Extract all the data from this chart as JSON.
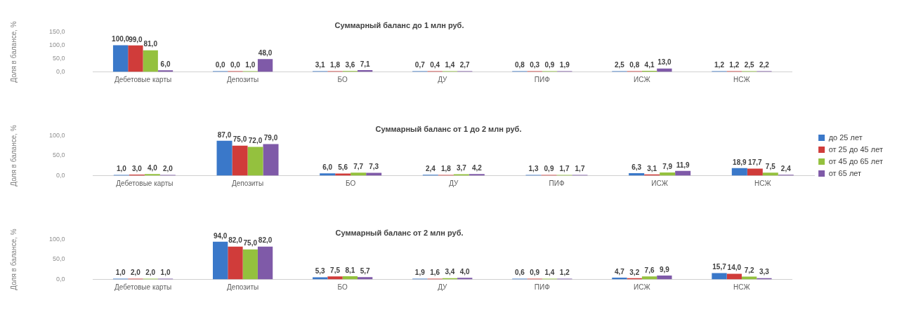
{
  "chart_data": [
    {
      "type": "bar",
      "title": "Суммарный баланс до 1 млн руб.",
      "ylabel": "Доля в балансе, %",
      "categories": [
        "Дебетовые карты",
        "Депозиты",
        "БО",
        "ДУ",
        "ПИФ",
        "ИСЖ",
        "НСЖ"
      ],
      "ylim": [
        0,
        150
      ],
      "yticks": [
        {
          "value": 0,
          "label": "0,0"
        },
        {
          "value": 50,
          "label": "50,0"
        },
        {
          "value": 100,
          "label": "100,0"
        },
        {
          "value": 150,
          "label": "150,0"
        }
      ],
      "grid": false,
      "legend": false,
      "series": [
        {
          "color": "#3a78c9",
          "values": [
            100,
            0,
            3.1,
            0.7,
            0.8,
            2.5,
            1.2
          ],
          "value_labels": [
            "100,0",
            "0,0",
            "3,1",
            "0,7",
            "0,8",
            "2,5",
            "1,2"
          ]
        },
        {
          "color": "#d03c3a",
          "values": [
            99,
            0,
            1.8,
            0.4,
            0.3,
            0.8,
            1.2
          ],
          "value_labels": [
            "99,0",
            "0,0",
            "1,8",
            "0,4",
            "0,3",
            "0,8",
            "1,2"
          ]
        },
        {
          "color": "#94c13e",
          "values": [
            81,
            1,
            3.6,
            1.4,
            0.9,
            4.1,
            2.5
          ],
          "value_labels": [
            "81,0",
            "1,0",
            "3,6",
            "1,4",
            "0,9",
            "4,1",
            "2,5"
          ]
        },
        {
          "color": "#7f5aa8",
          "values": [
            6,
            48,
            7.1,
            2.7,
            1.9,
            13,
            2.2
          ],
          "value_labels": [
            "6,0",
            "48,0",
            "7,1",
            "2,7",
            "1,9",
            "13,0",
            "2,2"
          ]
        }
      ]
    },
    {
      "type": "bar",
      "title": "Суммарный баланс от 1 до 2 млн руб.",
      "ylabel": "Доля в балансе, %",
      "categories": [
        "Дебетовые карты",
        "Депозиты",
        "БО",
        "ДУ",
        "ПИФ",
        "ИСЖ",
        "НСЖ"
      ],
      "ylim": [
        0,
        100
      ],
      "yticks": [
        {
          "value": 0,
          "label": "0,0"
        },
        {
          "value": 50,
          "label": "50,0"
        },
        {
          "value": 100,
          "label": "100,0"
        }
      ],
      "grid": false,
      "legend": "right",
      "series": [
        {
          "name": "до 25 лет",
          "color": "#3a78c9",
          "values": [
            1,
            87,
            6,
            2.4,
            1.3,
            6.3,
            18.9
          ],
          "value_labels": [
            "1,0",
            "87,0",
            "6,0",
            "2,4",
            "1,3",
            "6,3",
            "18,9"
          ]
        },
        {
          "name": "от 25 до 45 лет",
          "color": "#d03c3a",
          "values": [
            3,
            75,
            5.6,
            1.8,
            0.9,
            3.1,
            17.7
          ],
          "value_labels": [
            "3,0",
            "75,0",
            "5,6",
            "1,8",
            "0,9",
            "3,1",
            "17,7"
          ]
        },
        {
          "name": "от 45 до 65 лет",
          "color": "#94c13e",
          "values": [
            4,
            72,
            7.7,
            3.7,
            1.7,
            7.9,
            7.5
          ],
          "value_labels": [
            "4,0",
            "72,0",
            "7,7",
            "3,7",
            "1,7",
            "7,9",
            "7,5"
          ]
        },
        {
          "name": "от 65 лет",
          "color": "#7f5aa8",
          "values": [
            2,
            79,
            7.3,
            4.2,
            1.7,
            11.9,
            2.4
          ],
          "value_labels": [
            "2,0",
            "79,0",
            "7,3",
            "4,2",
            "1,7",
            "11,9",
            "2,4"
          ]
        }
      ]
    },
    {
      "type": "bar",
      "title": "Суммарный баланс от 2 млн руб.",
      "ylabel": "Доля в балансе, %",
      "categories": [
        "Дебетовые карты",
        "Депозиты",
        "БО",
        "ДУ",
        "ПИФ",
        "ИСЖ",
        "НСЖ"
      ],
      "ylim": [
        0,
        100
      ],
      "yticks": [
        {
          "value": 0,
          "label": "0,0"
        },
        {
          "value": 50,
          "label": "50,0"
        },
        {
          "value": 100,
          "label": "100,0"
        }
      ],
      "grid": false,
      "legend": false,
      "series": [
        {
          "color": "#3a78c9",
          "values": [
            1,
            94,
            5.3,
            1.9,
            0.6,
            4.7,
            15.7
          ],
          "value_labels": [
            "1,0",
            "94,0",
            "5,3",
            "1,9",
            "0,6",
            "4,7",
            "15,7"
          ]
        },
        {
          "color": "#d03c3a",
          "values": [
            2,
            82,
            7.5,
            1.6,
            0.9,
            3.2,
            14
          ],
          "value_labels": [
            "2,0",
            "82,0",
            "7,5",
            "1,6",
            "0,9",
            "3,2",
            "14,0"
          ]
        },
        {
          "color": "#94c13e",
          "values": [
            2,
            75,
            8.1,
            3.4,
            1.4,
            7.6,
            7.2
          ],
          "value_labels": [
            "2,0",
            "75,0",
            "8,1",
            "3,4",
            "1,4",
            "7,6",
            "7,2"
          ]
        },
        {
          "color": "#7f5aa8",
          "values": [
            1,
            82,
            5.7,
            4,
            1.2,
            9.9,
            3.3
          ],
          "value_labels": [
            "1,0",
            "82,0",
            "5,7",
            "4,0",
            "1,2",
            "9,9",
            "3,3"
          ]
        }
      ]
    }
  ]
}
